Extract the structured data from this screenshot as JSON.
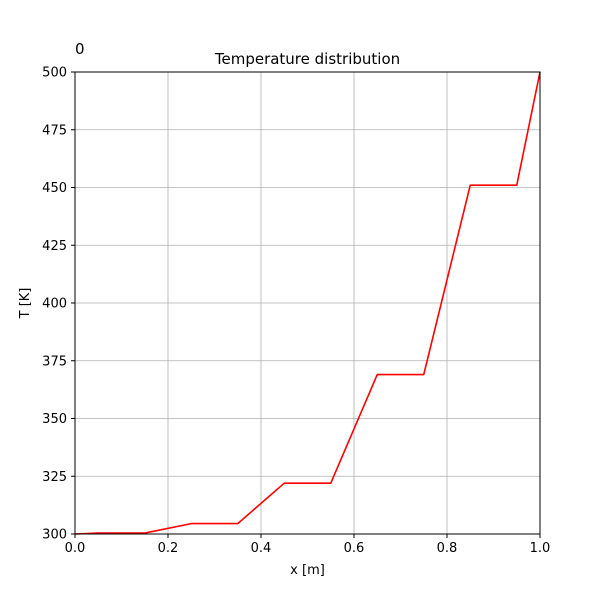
{
  "chart_data": {
    "type": "line",
    "title": "Temperature distribution",
    "corner_label": "0",
    "xlabel": "x [m]",
    "ylabel": "T [K]",
    "xlim": [
      0.0,
      1.0
    ],
    "ylim": [
      300,
      500
    ],
    "xticks": [
      0.0,
      0.2,
      0.4,
      0.6,
      0.8,
      1.0
    ],
    "xtick_labels": [
      "0.0",
      "0.2",
      "0.4",
      "0.6",
      "0.8",
      "1.0"
    ],
    "yticks": [
      300,
      325,
      350,
      375,
      400,
      425,
      450,
      475,
      500
    ],
    "ytick_labels": [
      "300",
      "325",
      "350",
      "375",
      "400",
      "425",
      "450",
      "475",
      "500"
    ],
    "grid": true,
    "series": [
      {
        "color": "#ff0000",
        "x": [
          0.0,
          0.05,
          0.15,
          0.25,
          0.35,
          0.45,
          0.55,
          0.65,
          0.75,
          0.85,
          0.95,
          1.0
        ],
        "y": [
          300.0,
          300.4,
          300.4,
          304.5,
          304.5,
          322.0,
          322.0,
          369.0,
          369.0,
          451.0,
          451.0,
          500.0
        ]
      }
    ]
  }
}
